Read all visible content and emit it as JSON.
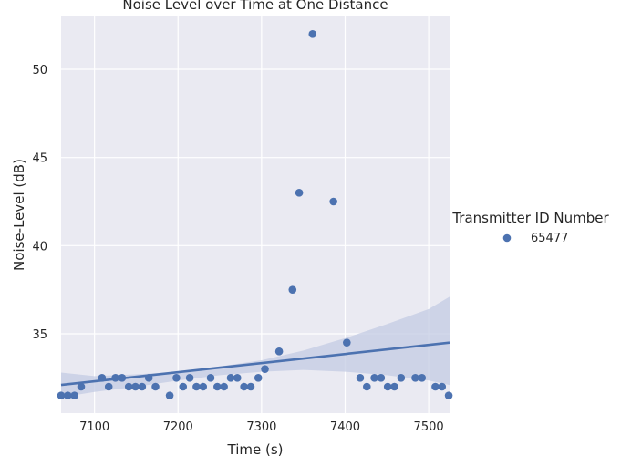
{
  "chart_data": {
    "type": "scatter",
    "title": "Noise Level over Time at One Distance",
    "xlabel": "Time (s)",
    "ylabel": "Noise-Level (dB)",
    "xlim": [
      7060,
      7525
    ],
    "ylim": [
      30.5,
      53.0
    ],
    "xticks": [
      7100,
      7200,
      7300,
      7400,
      7500
    ],
    "yticks": [
      35,
      40,
      45,
      50
    ],
    "grid": true,
    "legend": {
      "title": "Transmitter ID Number",
      "placement": "right",
      "entries": [
        "65477"
      ]
    },
    "colors": {
      "background": "#eaeaf2",
      "points": "#4c72b0",
      "regression": "#4c72b0",
      "confidence_band": "#c3cbe3",
      "grid": "#ffffff"
    },
    "series": [
      {
        "x": [
          7060,
          7068,
          7076,
          7084,
          7109,
          7117,
          7125,
          7133,
          7141,
          7149,
          7157,
          7165,
          7173,
          7190,
          7198,
          7206,
          7214,
          7222,
          7230,
          7239,
          7247,
          7255,
          7263,
          7271,
          7279,
          7287,
          7296,
          7304,
          7321,
          7337,
          7345,
          7361,
          7386,
          7402,
          7418,
          7426,
          7435,
          7443,
          7451,
          7459,
          7467,
          7484,
          7492,
          7508,
          7516,
          7524
        ],
        "y": [
          31.5,
          31.5,
          31.5,
          32.0,
          32.5,
          32.0,
          32.5,
          32.5,
          32.0,
          32.0,
          32.0,
          32.5,
          32.0,
          31.5,
          32.5,
          32.0,
          32.5,
          32.0,
          32.0,
          32.5,
          32.0,
          32.0,
          32.5,
          32.5,
          32.0,
          32.0,
          32.5,
          33.0,
          34.0,
          37.5,
          43.0,
          52.0,
          42.5,
          34.5,
          32.5,
          32.0,
          32.5,
          32.5,
          32.0,
          32.0,
          32.5,
          32.5,
          32.5,
          32.0,
          32.0,
          31.5
        ]
      }
    ],
    "regression_line": {
      "x": [
        7060,
        7525
      ],
      "y": [
        32.1,
        34.5
      ]
    },
    "confidence_band": {
      "x": [
        7060,
        7100,
        7150,
        7200,
        7250,
        7300,
        7350,
        7400,
        7450,
        7500,
        7525
      ],
      "lower": [
        31.4,
        31.7,
        32.0,
        32.35,
        32.65,
        32.85,
        32.95,
        32.85,
        32.65,
        32.35,
        32.1
      ],
      "upper": [
        32.8,
        32.6,
        32.7,
        32.85,
        33.15,
        33.5,
        34.05,
        34.75,
        35.55,
        36.4,
        37.1
      ]
    }
  }
}
